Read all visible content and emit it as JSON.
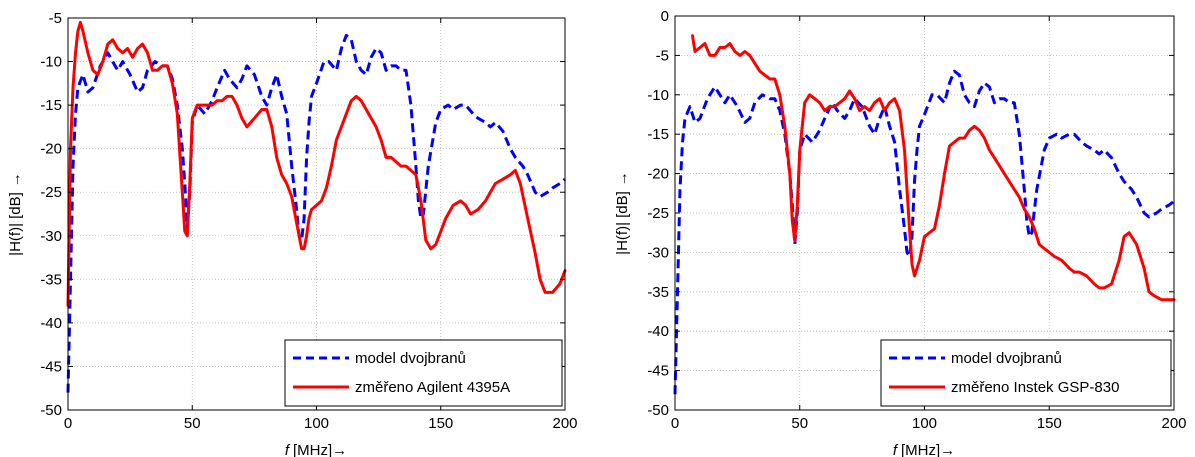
{
  "chart_data": [
    {
      "type": "line",
      "title": "",
      "xlabel_var": "f",
      "xlabel_unit": "[MHz]",
      "xlabel_arrow": "→",
      "ylabel": "|H(f)| [dB]",
      "ylabel_arrow": "→",
      "xlim": [
        0,
        200
      ],
      "ylim": [
        -50,
        -5
      ],
      "xticks": [
        "0",
        "50",
        "100",
        "150",
        "200"
      ],
      "yticks": [
        "-5",
        "-10",
        "-15",
        "-20",
        "-25",
        "-30",
        "-35",
        "-40",
        "-45",
        "-50"
      ],
      "grid": true,
      "legend_position": "bottom-right",
      "series": [
        {
          "name": "model dvojbranů",
          "color": "#0000ff",
          "style": "dashed",
          "x": [
            0,
            1,
            2,
            3,
            4,
            6,
            8,
            10,
            13,
            16,
            18,
            20,
            22,
            25,
            28,
            30,
            32,
            35,
            38,
            40,
            42,
            44,
            46,
            47,
            48,
            49,
            50,
            52,
            55,
            58,
            60,
            63,
            65,
            68,
            70,
            72,
            75,
            78,
            80,
            82,
            84,
            86,
            88,
            90,
            92,
            93,
            94,
            95,
            96,
            97,
            98,
            100,
            103,
            105,
            108,
            110,
            112,
            114,
            116,
            118,
            120,
            122,
            124,
            126,
            128,
            130,
            132,
            134,
            136,
            138,
            140,
            141,
            142,
            143,
            145,
            148,
            150,
            153,
            155,
            158,
            160,
            163,
            165,
            168,
            170,
            172,
            175,
            178,
            180,
            183,
            185,
            188,
            190,
            193,
            195,
            198,
            200
          ],
          "y": [
            -48,
            -35,
            -22,
            -16,
            -13,
            -11.5,
            -13.5,
            -13,
            -10.5,
            -9,
            -10,
            -11,
            -10,
            -11.5,
            -13.5,
            -13,
            -11,
            -10,
            -10.5,
            -10.5,
            -12,
            -15,
            -20,
            -24,
            -29,
            -25,
            -17,
            -15,
            -16,
            -14.5,
            -13,
            -11,
            -12,
            -13,
            -12,
            -10.5,
            -11.5,
            -14,
            -15,
            -13,
            -11.5,
            -14,
            -16,
            -22,
            -27,
            -30,
            -30.5,
            -28,
            -21,
            -17,
            -14,
            -12.5,
            -10,
            -10,
            -11,
            -8.5,
            -7,
            -7.5,
            -10,
            -11,
            -11.5,
            -9.5,
            -8.5,
            -9,
            -11,
            -10.5,
            -10.5,
            -11,
            -11,
            -15,
            -22,
            -26,
            -28,
            -27.5,
            -22,
            -17,
            -15.5,
            -15,
            -15.5,
            -15,
            -15,
            -16,
            -16.5,
            -17,
            -17.5,
            -17,
            -18,
            -20,
            -21,
            -22,
            -23,
            -25,
            -25.5,
            -25,
            -24.5,
            -24,
            -23.5
          ]
        },
        {
          "name": "změřeno Agilent 4395A",
          "color": "#ff0000",
          "style": "solid",
          "x": [
            0,
            1,
            2,
            3,
            4,
            5,
            6,
            8,
            10,
            12,
            14,
            16,
            18,
            20,
            22,
            24,
            26,
            28,
            30,
            32,
            34,
            36,
            38,
            40,
            42,
            44,
            46,
            47,
            48,
            49,
            50,
            52,
            54,
            56,
            58,
            60,
            62,
            64,
            66,
            68,
            70,
            72,
            75,
            78,
            80,
            82,
            84,
            86,
            88,
            90,
            92,
            94,
            95,
            96,
            97,
            98,
            100,
            102,
            104,
            106,
            108,
            110,
            112,
            114,
            116,
            118,
            120,
            122,
            124,
            126,
            128,
            130,
            132,
            134,
            136,
            138,
            140,
            142,
            144,
            146,
            148,
            150,
            152,
            155,
            158,
            160,
            162,
            165,
            168,
            170,
            172,
            175,
            178,
            180,
            182,
            185,
            188,
            190,
            192,
            195,
            198,
            200
          ],
          "y": [
            -38,
            -20,
            -13,
            -9,
            -6.5,
            -5.5,
            -6.5,
            -9,
            -11,
            -11.5,
            -10,
            -8,
            -7.5,
            -8.5,
            -9,
            -8.5,
            -9.5,
            -8.5,
            -8,
            -9,
            -11,
            -11,
            -10.5,
            -10.5,
            -12.5,
            -16,
            -25,
            -29.5,
            -30,
            -24,
            -16.5,
            -15,
            -15,
            -15,
            -15,
            -14.5,
            -14.5,
            -14,
            -14,
            -15,
            -16.5,
            -17.5,
            -16.5,
            -15.5,
            -15.5,
            -17.5,
            -21,
            -23,
            -24,
            -25.5,
            -28.5,
            -31.5,
            -31.5,
            -30,
            -28,
            -27,
            -26.5,
            -26,
            -24.5,
            -22,
            -19,
            -17.5,
            -16,
            -14.5,
            -14,
            -14.5,
            -15.5,
            -16.5,
            -17.5,
            -19,
            -21,
            -21,
            -21.5,
            -22,
            -22,
            -22.5,
            -23,
            -26,
            -30.5,
            -31.5,
            -31,
            -29.5,
            -28,
            -26.5,
            -26,
            -26.5,
            -27.5,
            -27,
            -26,
            -25,
            -24,
            -23.5,
            -23,
            -22.5,
            -24,
            -28,
            -32,
            -35,
            -36.5,
            -36.5,
            -35.5,
            -34
          ]
        }
      ]
    },
    {
      "type": "line",
      "title": "",
      "xlabel_var": "f",
      "xlabel_unit": "[MHz]",
      "xlabel_arrow": "→",
      "ylabel": "|H(f)| [dB]",
      "ylabel_arrow": "→",
      "xlim": [
        0,
        200
      ],
      "ylim": [
        -50,
        0
      ],
      "xticks": [
        "0",
        "50",
        "100",
        "150",
        "200"
      ],
      "yticks": [
        "0",
        "-5",
        "-10",
        "-15",
        "-20",
        "-25",
        "-30",
        "-35",
        "-40",
        "-45",
        "-50"
      ],
      "grid": true,
      "legend_position": "bottom-right",
      "series": [
        {
          "name": "model dvojbranů",
          "color": "#0000ff",
          "style": "dashed",
          "x": [
            0,
            1,
            2,
            3,
            4,
            6,
            8,
            10,
            13,
            16,
            18,
            20,
            22,
            25,
            28,
            30,
            32,
            35,
            38,
            40,
            42,
            44,
            46,
            47,
            48,
            49,
            50,
            52,
            55,
            58,
            60,
            63,
            65,
            68,
            70,
            72,
            75,
            78,
            80,
            82,
            84,
            86,
            88,
            90,
            92,
            93,
            94,
            95,
            96,
            97,
            98,
            100,
            103,
            105,
            108,
            110,
            112,
            114,
            116,
            118,
            120,
            122,
            124,
            126,
            128,
            130,
            132,
            134,
            136,
            138,
            140,
            141,
            142,
            143,
            145,
            148,
            150,
            153,
            155,
            158,
            160,
            163,
            165,
            168,
            170,
            172,
            175,
            178,
            180,
            183,
            185,
            188,
            190,
            193,
            195,
            198,
            200
          ],
          "y": [
            -48,
            -35,
            -22,
            -16,
            -13,
            -11.5,
            -13.5,
            -13,
            -10.5,
            -9,
            -10,
            -11,
            -10,
            -11.5,
            -13.5,
            -13,
            -11,
            -10,
            -10.5,
            -10.5,
            -12,
            -15,
            -20,
            -24,
            -29,
            -25,
            -17,
            -15,
            -16,
            -14.5,
            -13,
            -11,
            -12,
            -13,
            -12,
            -10.5,
            -11.5,
            -14,
            -15,
            -13,
            -11.5,
            -14,
            -16,
            -22,
            -27,
            -30,
            -30.5,
            -28,
            -21,
            -17,
            -14,
            -12.5,
            -10,
            -10,
            -11,
            -8.5,
            -7,
            -7.5,
            -10,
            -11,
            -11.5,
            -9.5,
            -8.5,
            -9,
            -11,
            -10.5,
            -10.5,
            -11,
            -11,
            -15,
            -22,
            -26,
            -28,
            -27.5,
            -22,
            -17,
            -15.5,
            -15,
            -15.5,
            -15,
            -15,
            -16,
            -16.5,
            -17,
            -17.5,
            -17,
            -18,
            -20,
            -21,
            -22,
            -23,
            -25,
            -25.5,
            -25,
            -24.5,
            -24,
            -23.5
          ]
        },
        {
          "name": "změřeno Instek GSP-830",
          "color": "#ff0000",
          "style": "solid",
          "x": [
            7,
            8,
            10,
            12,
            14,
            16,
            18,
            20,
            22,
            24,
            26,
            28,
            30,
            32,
            34,
            36,
            38,
            40,
            42,
            44,
            46,
            47,
            48,
            49,
            50,
            52,
            54,
            56,
            58,
            60,
            62,
            64,
            66,
            68,
            70,
            72,
            74,
            76,
            78,
            80,
            82,
            84,
            86,
            88,
            90,
            92,
            94,
            95,
            96,
            97,
            98,
            100,
            102,
            104,
            106,
            108,
            110,
            112,
            114,
            116,
            118,
            120,
            122,
            124,
            126,
            128,
            130,
            132,
            134,
            136,
            138,
            140,
            142,
            144,
            146,
            148,
            150,
            152,
            155,
            158,
            160,
            162,
            165,
            168,
            170,
            172,
            175,
            178,
            180,
            182,
            185,
            188,
            190,
            192,
            195,
            198,
            200
          ],
          "y": [
            -2.5,
            -4.5,
            -4,
            -3.5,
            -5,
            -5,
            -4,
            -4,
            -3.5,
            -4.5,
            -5,
            -4.5,
            -5,
            -6,
            -7,
            -7.5,
            -8,
            -8,
            -10,
            -14,
            -20,
            -26,
            -28.5,
            -24,
            -17,
            -11,
            -10,
            -10.5,
            -11,
            -12,
            -11.5,
            -11.5,
            -11,
            -10.5,
            -9.5,
            -10.5,
            -12,
            -11.5,
            -12,
            -11,
            -10.5,
            -12,
            -11,
            -10.5,
            -12,
            -17,
            -27,
            -31.5,
            -33,
            -32,
            -31,
            -28,
            -27.5,
            -27,
            -24,
            -20,
            -16.5,
            -16,
            -15.5,
            -15.5,
            -14.5,
            -14,
            -14.5,
            -15.5,
            -17,
            -18,
            -19,
            -20,
            -21,
            -22,
            -23,
            -24.5,
            -25.5,
            -27,
            -29,
            -29.5,
            -30,
            -30.5,
            -31,
            -32,
            -32.5,
            -32.5,
            -33,
            -34,
            -34.5,
            -34.5,
            -34,
            -31,
            -28,
            -27.5,
            -29,
            -32,
            -35,
            -35.5,
            -36,
            -36,
            -36
          ]
        }
      ]
    }
  ]
}
